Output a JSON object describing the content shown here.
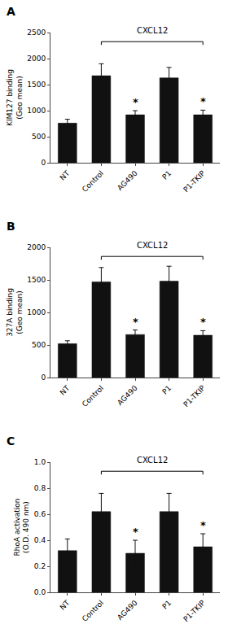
{
  "chart_data": [
    {
      "type": "bar",
      "title": "A",
      "ylabel": "KIM127 binding\n(Geo mean)",
      "categories": [
        "NT",
        "Control",
        "AG490",
        "P1",
        "P1-TKIP"
      ],
      "values": [
        760,
        1670,
        920,
        1630,
        920
      ],
      "errors": [
        75,
        230,
        80,
        200,
        90
      ],
      "color": "#111111",
      "grid": false,
      "ylim": [
        0,
        2500
      ],
      "yticks": [
        0,
        500,
        1000,
        1500,
        2000,
        2500
      ],
      "annotations": [
        {
          "text": "*",
          "category": "AG490"
        },
        {
          "text": "*",
          "category": "P1-TKIP"
        },
        {
          "text": "CXCL12",
          "from": "Control",
          "to": "P1-TKIP"
        }
      ]
    },
    {
      "type": "bar",
      "title": "B",
      "ylabel": "327A binding\n(Geo mean)",
      "categories": [
        "NT",
        "Control",
        "AG490",
        "P1",
        "P1-TKIP"
      ],
      "values": [
        520,
        1470,
        660,
        1480,
        650
      ],
      "errors": [
        45,
        220,
        70,
        230,
        70
      ],
      "color": "#111111",
      "grid": false,
      "ylim": [
        0,
        2000
      ],
      "yticks": [
        0,
        500,
        1000,
        1500,
        2000
      ],
      "annotations": [
        {
          "text": "*",
          "category": "AG490"
        },
        {
          "text": "*",
          "category": "P1-TKIP"
        },
        {
          "text": "CXCL12",
          "from": "Control",
          "to": "P1-TKIP"
        }
      ]
    },
    {
      "type": "bar",
      "title": "C",
      "ylabel": "RhoA activation\n(O.D. 490 nm)",
      "categories": [
        "NT",
        "Control",
        "AG490",
        "P1",
        "P1-TKIP"
      ],
      "values": [
        0.32,
        0.62,
        0.3,
        0.62,
        0.35
      ],
      "errors": [
        0.09,
        0.14,
        0.1,
        0.14,
        0.1
      ],
      "color": "#111111",
      "grid": false,
      "ylim": [
        0,
        1.0
      ],
      "yticks": [
        {
          "value": 0.0,
          "label": "0.0"
        },
        0.2,
        0.4,
        0.6,
        0.8,
        {
          "value": 1.0,
          "label": "1.0"
        }
      ],
      "annotations": [
        {
          "text": "*",
          "category": "AG490"
        },
        {
          "text": "*",
          "category": "P1-TKIP"
        },
        {
          "text": "CXCL12",
          "from": "Control",
          "to": "P1-TKIP"
        }
      ]
    }
  ]
}
